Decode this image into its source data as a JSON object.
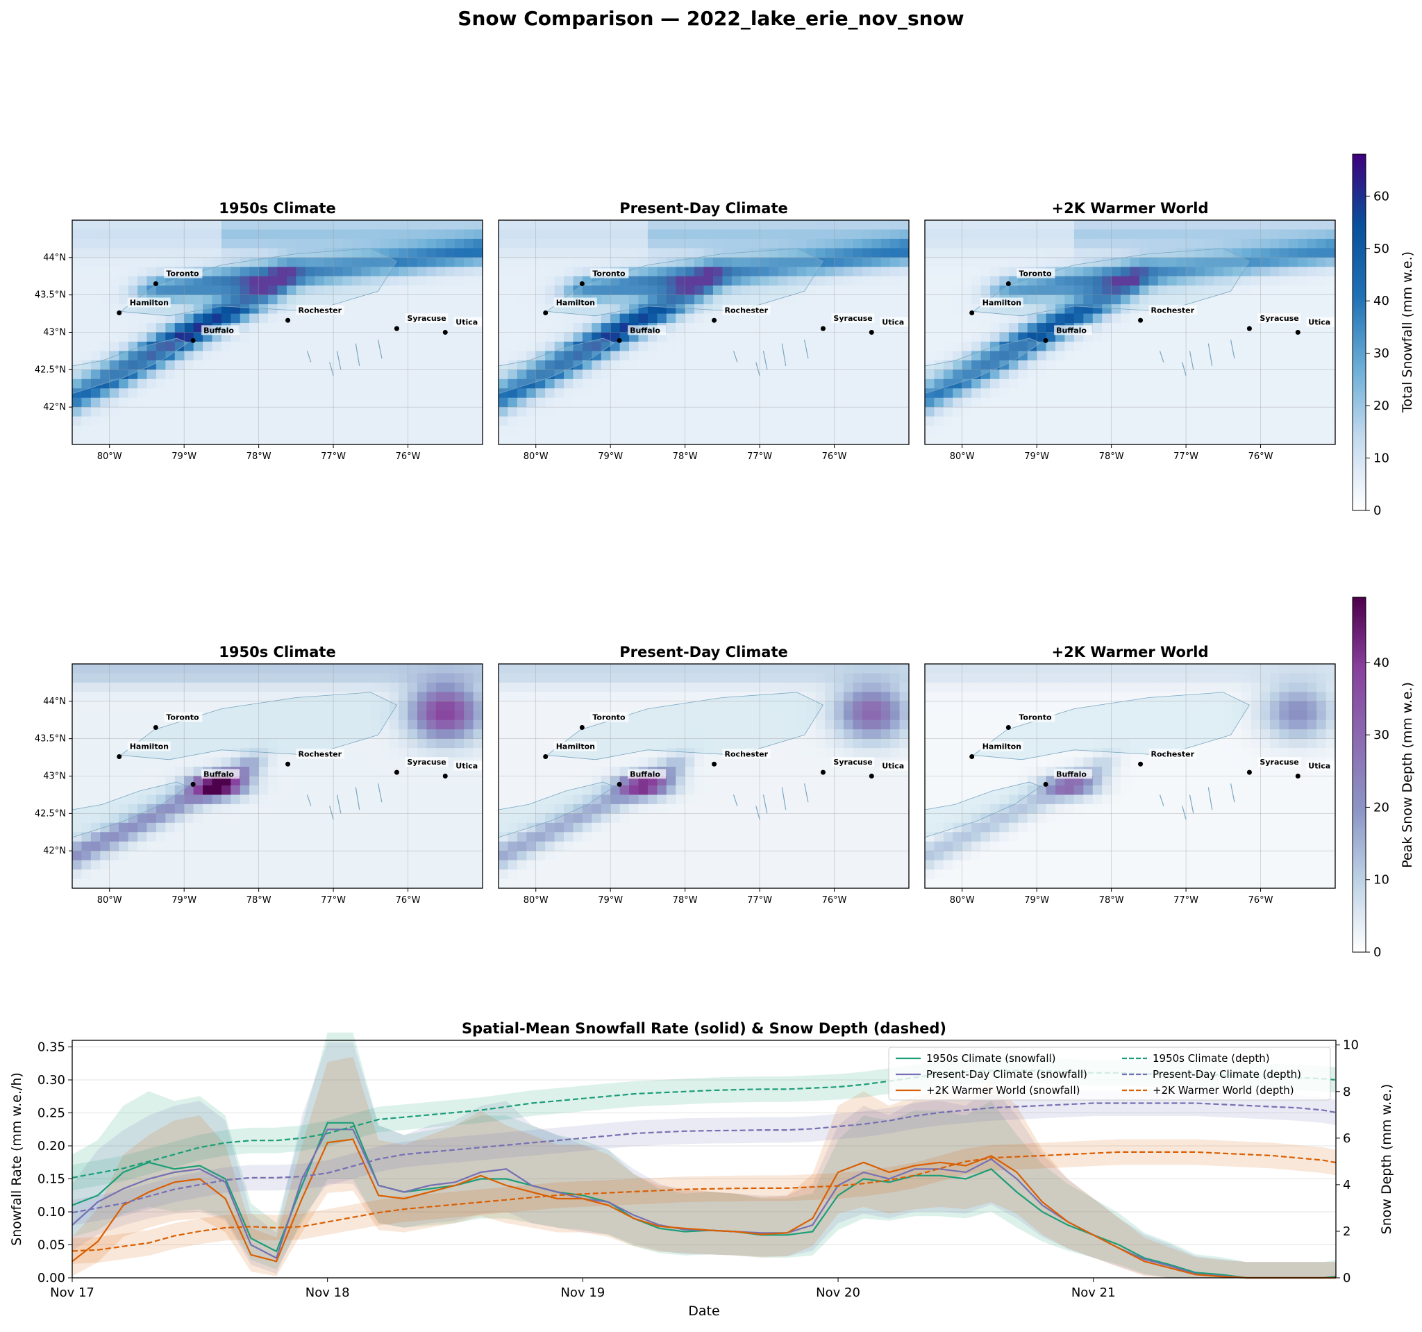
{
  "figure": {
    "suptitle": "Snow Comparison — 2022_lake_erie_nov_snow"
  },
  "scenarios": [
    "1950s Climate",
    "Present-Day Climate",
    "+2K Warmer World"
  ],
  "map": {
    "lon_ticks": [
      "80°W",
      "79°W",
      "78°W",
      "77°W",
      "76°W"
    ],
    "lat_ticks": [
      "44°N",
      "43.5°N",
      "43°N",
      "42.5°N",
      "42°N"
    ],
    "cities": [
      {
        "name": "Toronto",
        "lon": -79.38,
        "lat": 43.65
      },
      {
        "name": "Hamilton",
        "lon": -79.87,
        "lat": 43.26
      },
      {
        "name": "Buffalo",
        "lon": -78.88,
        "lat": 42.89
      },
      {
        "name": "Rochester",
        "lon": -77.61,
        "lat": 43.16
      },
      {
        "name": "Syracuse",
        "lon": -76.15,
        "lat": 43.05
      },
      {
        "name": "Utica",
        "lon": -75.5,
        "lat": 43.0
      }
    ]
  },
  "colorbars": {
    "snowfall": {
      "label": "Total Snowfall (mm w.e.)",
      "ticks": [
        "0",
        "10",
        "20",
        "30",
        "40",
        "50",
        "60"
      ],
      "colors": [
        "#ffffff",
        "#c6dbef",
        "#6baed6",
        "#2171b5",
        "#08519c",
        "#3f007d"
      ]
    },
    "depth": {
      "label": "Peak Snow Depth (mm w.e.)",
      "ticks": [
        "0",
        "10",
        "20",
        "30",
        "40"
      ],
      "colors": [
        "#ffffff",
        "#bfd3e6",
        "#8c96c6",
        "#8c6bb1",
        "#88419d",
        "#4d004b"
      ]
    }
  },
  "chart_data": {
    "type": "line",
    "title": "Spatial-Mean Snowfall Rate (solid) & Snow Depth (dashed)",
    "xlabel": "Date",
    "ylabel": "Snowfall Rate (mm w.e./h)",
    "ylabel_right": "Snow Depth (mm w.e.)",
    "x_ticks": [
      "Nov 17",
      "Nov 18",
      "Nov 19",
      "Nov 20",
      "Nov 21"
    ],
    "xlim_days": [
      0,
      4.95
    ],
    "ylim": [
      0,
      0.36
    ],
    "ylim_right": [
      0,
      10.2
    ],
    "y_ticks": [
      "0.00",
      "0.05",
      "0.10",
      "0.15",
      "0.20",
      "0.25",
      "0.30",
      "0.35"
    ],
    "y_ticks_right": [
      "0",
      "2",
      "4",
      "6",
      "8",
      "10"
    ],
    "x_days": [
      0,
      0.1,
      0.2,
      0.3,
      0.4,
      0.5,
      0.6,
      0.7,
      0.8,
      0.9,
      1.0,
      1.1,
      1.2,
      1.3,
      1.4,
      1.5,
      1.6,
      1.7,
      1.8,
      1.9,
      2.0,
      2.1,
      2.2,
      2.3,
      2.4,
      2.5,
      2.6,
      2.7,
      2.8,
      2.9,
      3.0,
      3.1,
      3.2,
      3.3,
      3.4,
      3.5,
      3.6,
      3.7,
      3.8,
      3.9,
      4.0,
      4.1,
      4.2,
      4.3,
      4.4,
      4.5,
      4.6,
      4.7,
      4.8,
      4.9,
      4.95
    ],
    "series": [
      {
        "name": "1950s Climate (snowfall)",
        "axis": "left",
        "style": "solid",
        "color": "#1b9e77",
        "values": [
          0.11,
          0.125,
          0.16,
          0.175,
          0.165,
          0.17,
          0.15,
          0.06,
          0.04,
          0.14,
          0.235,
          0.235,
          0.14,
          0.13,
          0.135,
          0.14,
          0.15,
          0.15,
          0.14,
          0.13,
          0.125,
          0.115,
          0.09,
          0.075,
          0.07,
          0.072,
          0.07,
          0.065,
          0.065,
          0.07,
          0.125,
          0.15,
          0.145,
          0.155,
          0.155,
          0.15,
          0.165,
          0.13,
          0.1,
          0.08,
          0.065,
          0.05,
          0.03,
          0.02,
          0.008,
          0.005,
          0.0,
          0.0,
          0.0,
          0.0,
          0.002
        ]
      },
      {
        "name": "Present-Day Climate (snowfall)",
        "axis": "left",
        "style": "solid",
        "color": "#7570b3",
        "values": [
          0.08,
          0.115,
          0.135,
          0.15,
          0.16,
          0.165,
          0.145,
          0.05,
          0.03,
          0.15,
          0.225,
          0.225,
          0.14,
          0.13,
          0.14,
          0.145,
          0.16,
          0.165,
          0.14,
          0.13,
          0.12,
          0.115,
          0.095,
          0.08,
          0.073,
          0.072,
          0.07,
          0.068,
          0.068,
          0.08,
          0.14,
          0.16,
          0.15,
          0.165,
          0.165,
          0.16,
          0.18,
          0.15,
          0.11,
          0.085,
          0.065,
          0.045,
          0.028,
          0.018,
          0.006,
          0.003,
          0.0,
          0.0,
          0.0,
          0.0,
          0.0
        ]
      },
      {
        "name": "+2K Warmer World (snowfall)",
        "axis": "left",
        "style": "solid",
        "color": "#d95f02",
        "values": [
          0.025,
          0.055,
          0.11,
          0.13,
          0.145,
          0.15,
          0.12,
          0.035,
          0.025,
          0.12,
          0.205,
          0.21,
          0.125,
          0.12,
          0.13,
          0.14,
          0.155,
          0.14,
          0.13,
          0.12,
          0.12,
          0.11,
          0.09,
          0.078,
          0.075,
          0.072,
          0.07,
          0.066,
          0.068,
          0.09,
          0.16,
          0.175,
          0.16,
          0.17,
          0.175,
          0.17,
          0.185,
          0.16,
          0.115,
          0.085,
          0.065,
          0.045,
          0.025,
          0.015,
          0.005,
          0.002,
          0.0,
          0.0,
          0.0,
          0.0,
          0.0
        ]
      },
      {
        "name": "1950s Climate (depth)",
        "axis": "right",
        "style": "dashed",
        "color": "#1b9e77",
        "values": [
          4.3,
          4.5,
          4.7,
          5.0,
          5.3,
          5.6,
          5.8,
          5.9,
          5.9,
          6.0,
          6.2,
          6.5,
          6.8,
          6.9,
          7.0,
          7.1,
          7.2,
          7.35,
          7.5,
          7.6,
          7.7,
          7.8,
          7.9,
          7.95,
          8.0,
          8.05,
          8.08,
          8.1,
          8.1,
          8.15,
          8.2,
          8.3,
          8.45,
          8.6,
          8.75,
          8.85,
          8.9,
          8.9,
          8.9,
          8.85,
          8.8,
          8.8,
          8.75,
          8.75,
          8.75,
          8.7,
          8.7,
          8.65,
          8.6,
          8.55,
          8.5
        ]
      },
      {
        "name": "Present-Day Climate (depth)",
        "axis": "right",
        "style": "dashed",
        "color": "#7570b3",
        "values": [
          2.8,
          3.0,
          3.2,
          3.5,
          3.8,
          4.0,
          4.2,
          4.3,
          4.3,
          4.35,
          4.5,
          4.8,
          5.1,
          5.3,
          5.4,
          5.5,
          5.6,
          5.7,
          5.8,
          5.9,
          6.0,
          6.1,
          6.2,
          6.25,
          6.3,
          6.32,
          6.33,
          6.35,
          6.35,
          6.4,
          6.5,
          6.6,
          6.75,
          6.95,
          7.1,
          7.2,
          7.3,
          7.35,
          7.4,
          7.45,
          7.5,
          7.5,
          7.5,
          7.5,
          7.5,
          7.45,
          7.4,
          7.35,
          7.3,
          7.2,
          7.1
        ]
      },
      {
        "name": "+2K Warmer World (depth)",
        "axis": "right",
        "style": "dashed",
        "color": "#d95f02",
        "values": [
          1.15,
          1.2,
          1.35,
          1.5,
          1.8,
          2.0,
          2.15,
          2.2,
          2.15,
          2.2,
          2.4,
          2.6,
          2.8,
          2.95,
          3.05,
          3.15,
          3.25,
          3.35,
          3.45,
          3.55,
          3.6,
          3.65,
          3.7,
          3.75,
          3.8,
          3.82,
          3.84,
          3.85,
          3.85,
          3.9,
          3.95,
          4.05,
          4.2,
          4.4,
          4.7,
          5.0,
          5.15,
          5.2,
          5.25,
          5.3,
          5.35,
          5.4,
          5.4,
          5.4,
          5.4,
          5.35,
          5.3,
          5.25,
          5.15,
          5.05,
          4.95
        ]
      }
    ]
  }
}
